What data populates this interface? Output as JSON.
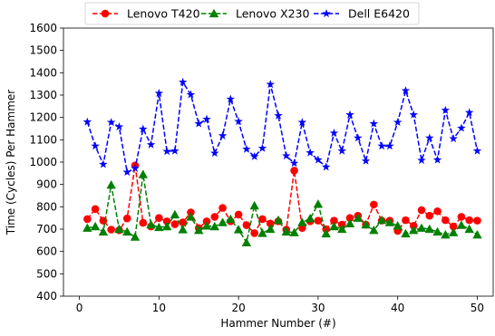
{
  "chart_data": {
    "type": "line",
    "title": "",
    "xlabel": "Hammer Number (#)",
    "ylabel": "Time (Cycles) Per Hammer",
    "xlim": [
      -2,
      52
    ],
    "ylim": [
      400,
      1600
    ],
    "xticks": [
      0,
      10,
      20,
      30,
      40,
      50
    ],
    "yticks": [
      400,
      500,
      600,
      700,
      800,
      900,
      1000,
      1100,
      1200,
      1300,
      1400,
      1500,
      1600
    ],
    "grid": false,
    "legend": "top-center",
    "x": [
      1,
      2,
      3,
      4,
      5,
      6,
      7,
      8,
      9,
      10,
      11,
      12,
      13,
      14,
      15,
      16,
      17,
      18,
      19,
      20,
      21,
      22,
      23,
      24,
      25,
      26,
      27,
      28,
      29,
      30,
      31,
      32,
      33,
      34,
      35,
      36,
      37,
      38,
      39,
      40,
      41,
      42,
      43,
      44,
      45,
      46,
      47,
      48,
      49,
      50
    ],
    "series": [
      {
        "name": "Lenovo T420",
        "color": "#ff0000",
        "marker": "circle",
        "values": [
          745,
          790,
          738,
          698,
          695,
          748,
          985,
          728,
          712,
          750,
          735,
          722,
          730,
          775,
          705,
          735,
          755,
          795,
          735,
          765,
          718,
          682,
          745,
          725,
          735,
          698,
          962,
          705,
          735,
          738,
          700,
          738,
          720,
          750,
          760,
          720,
          810,
          738,
          738,
          692,
          740,
          715,
          785,
          760,
          780,
          740,
          712,
          755,
          740,
          738
        ]
      },
      {
        "name": "Lenovo X230",
        "color": "#008000",
        "marker": "triangle",
        "values": [
          705,
          712,
          688,
          898,
          700,
          688,
          665,
          945,
          720,
          708,
          712,
          765,
          698,
          755,
          695,
          715,
          712,
          730,
          745,
          698,
          640,
          805,
          682,
          700,
          740,
          688,
          685,
          730,
          748,
          812,
          680,
          712,
          700,
          725,
          750,
          720,
          695,
          740,
          730,
          715,
          680,
          695,
          705,
          700,
          688,
          675,
          685,
          718,
          700,
          675
        ]
      },
      {
        "name": "Dell E6420",
        "color": "#0000ff",
        "marker": "star",
        "values": [
          1180,
          1072,
          990,
          1178,
          1158,
          955,
          972,
          1148,
          1078,
          1308,
          1048,
          1050,
          1358,
          1302,
          1172,
          1192,
          1040,
          1118,
          1282,
          1182,
          1058,
          1025,
          1062,
          1348,
          1208,
          1028,
          995,
          1178,
          1042,
          1010,
          978,
          1130,
          1050,
          1212,
          1108,
          1005,
          1172,
          1072,
          1072,
          1178,
          1320,
          1212,
          1008,
          1108,
          1010,
          1232,
          1105,
          1152,
          1222,
          1050
        ]
      }
    ]
  }
}
